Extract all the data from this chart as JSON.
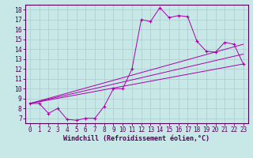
{
  "xlabel": "Windchill (Refroidissement éolien,°C)",
  "background_color": "#c8e8e8",
  "grid_color": "#aacccc",
  "line_color": "#aa00aa",
  "spine_color": "#550055",
  "xlim": [
    -0.5,
    23.5
  ],
  "ylim": [
    6.5,
    18.5
  ],
  "xticks": [
    0,
    1,
    2,
    3,
    4,
    5,
    6,
    7,
    8,
    9,
    10,
    11,
    12,
    13,
    14,
    15,
    16,
    17,
    18,
    19,
    20,
    21,
    22,
    23
  ],
  "yticks": [
    7,
    8,
    9,
    10,
    11,
    12,
    13,
    14,
    15,
    16,
    17,
    18
  ],
  "line1_x": [
    0,
    1,
    2,
    3,
    4,
    5,
    6,
    7,
    8,
    9,
    10,
    11,
    12,
    13,
    14,
    15,
    16,
    17,
    18,
    19,
    20,
    21,
    22,
    23
  ],
  "line1_y": [
    8.5,
    8.5,
    7.5,
    8.0,
    6.9,
    6.8,
    7.0,
    7.0,
    8.2,
    10.0,
    10.0,
    12.0,
    17.0,
    16.8,
    18.2,
    17.2,
    17.4,
    17.3,
    14.8,
    13.8,
    13.7,
    14.7,
    14.5,
    12.5
  ],
  "line2_x": [
    0,
    23
  ],
  "line2_y": [
    8.5,
    12.5
  ],
  "line3_x": [
    0,
    23
  ],
  "line3_y": [
    8.5,
    13.5
  ],
  "line4_x": [
    0,
    23
  ],
  "line4_y": [
    8.5,
    14.5
  ],
  "xlabel_fontsize": 6,
  "tick_fontsize": 5.5
}
